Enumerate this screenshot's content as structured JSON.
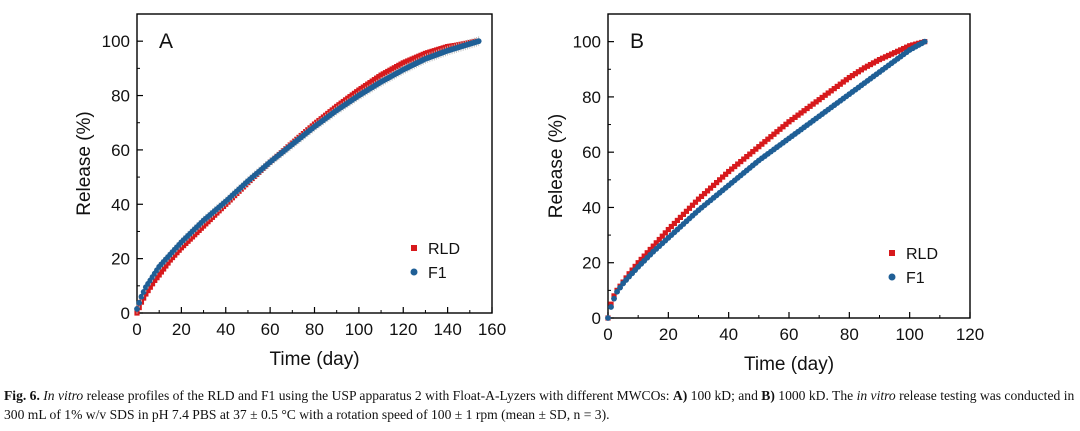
{
  "chart_data": [
    {
      "type": "scatter",
      "panel_label": "A",
      "xlabel": "Time (day)",
      "ylabel": "Release (%)",
      "xlim": [
        0,
        160
      ],
      "ylim": [
        0,
        110
      ],
      "x_ticks": [
        0,
        20,
        40,
        60,
        80,
        100,
        120,
        140,
        160
      ],
      "y_ticks": [
        0,
        20,
        40,
        60,
        80,
        100
      ],
      "legend_position": "lower-right",
      "error_bars": "light grey (mean ± SD)",
      "series": [
        {
          "name": "RLD",
          "color": "#d7191c",
          "marker": "square",
          "x": [
            0,
            2,
            4,
            6,
            8,
            10,
            15,
            20,
            25,
            30,
            35,
            40,
            50,
            60,
            70,
            80,
            90,
            100,
            110,
            120,
            130,
            140,
            144,
            150,
            153
          ],
          "y": [
            0,
            4,
            7,
            9.5,
            12,
            14,
            19.5,
            24,
            28,
            32,
            36,
            40,
            48,
            55.5,
            62.5,
            69.5,
            76,
            82,
            87.5,
            92,
            95.5,
            98,
            98.5,
            99.5,
            100
          ]
        },
        {
          "name": "F1",
          "color": "#1f5f96",
          "marker": "circle",
          "x": [
            0,
            2,
            4,
            6,
            8,
            10,
            15,
            20,
            25,
            30,
            35,
            40,
            50,
            60,
            70,
            80,
            90,
            100,
            110,
            120,
            130,
            140,
            150,
            154
          ],
          "y": [
            1.5,
            6,
            9.5,
            12,
            14.5,
            17,
            21.5,
            26,
            30,
            34,
            37.5,
            41,
            48.5,
            55.5,
            62,
            68.5,
            74.5,
            80,
            85,
            89.5,
            93.5,
            96.5,
            99,
            100
          ]
        }
      ]
    },
    {
      "type": "scatter",
      "panel_label": "B",
      "xlabel": "Time (day)",
      "ylabel": "Release (%)",
      "xlim": [
        0,
        120
      ],
      "ylim": [
        0,
        110
      ],
      "x_ticks": [
        0,
        20,
        40,
        60,
        80,
        100,
        120
      ],
      "y_ticks": [
        0,
        20,
        40,
        60,
        80,
        100
      ],
      "legend_position": "lower-right",
      "series": [
        {
          "name": "RLD",
          "color": "#d7191c",
          "marker": "square",
          "x": [
            0,
            1,
            2,
            3,
            5,
            7,
            10,
            15,
            20,
            25,
            30,
            35,
            40,
            45,
            50,
            55,
            60,
            65,
            70,
            75,
            80,
            85,
            90,
            95,
            100,
            105
          ],
          "y": [
            0,
            5,
            8,
            10,
            13,
            16,
            20,
            26,
            32,
            37.5,
            43,
            48,
            53,
            57.5,
            62,
            66.5,
            71,
            75,
            79,
            83,
            87,
            90.5,
            93.5,
            96,
            98.5,
            100
          ]
        },
        {
          "name": "F1",
          "color": "#1f5f96",
          "marker": "circle",
          "x": [
            0,
            1,
            2,
            3,
            5,
            7,
            10,
            15,
            20,
            25,
            30,
            35,
            40,
            45,
            50,
            55,
            60,
            65,
            70,
            75,
            80,
            85,
            90,
            95,
            100,
            105
          ],
          "y": [
            0,
            4,
            7,
            9.5,
            12.5,
            15,
            18.5,
            24,
            29,
            34,
            39,
            43.5,
            48,
            52.5,
            57,
            61,
            65,
            69,
            73,
            77,
            81,
            85,
            89,
            93,
            97,
            100
          ]
        }
      ]
    }
  ],
  "caption": {
    "fig_label": "Fig. 6.",
    "segments": [
      {
        "text": "In vitro",
        "style": "italic"
      },
      {
        "text": " release profiles of the RLD and F1 using the USP apparatus 2 with Float-A-Lyzers with different MWCOs: ",
        "style": "normal"
      },
      {
        "text": "A)",
        "style": "bold"
      },
      {
        "text": " 100 kD; and ",
        "style": "normal"
      },
      {
        "text": "B)",
        "style": "bold"
      },
      {
        "text": " 1000 kD. The ",
        "style": "normal"
      },
      {
        "text": "in vitro",
        "style": "italic"
      },
      {
        "text": " release testing was conducted in 300 mL of 1% w/v SDS in pH 7.4 PBS at 37 ± 0.5 °C with a rotation speed of 100 ± 1 rpm (mean ± SD, n = 3).",
        "style": "normal"
      }
    ]
  }
}
